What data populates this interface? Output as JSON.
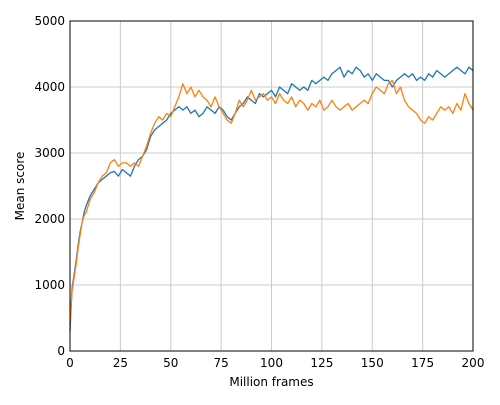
{
  "chart_data": {
    "type": "line",
    "title": "",
    "xlabel": "Million frames",
    "ylabel": "Mean score",
    "xlim": [
      0,
      200
    ],
    "ylim": [
      0,
      5000
    ],
    "xticks": [
      0,
      25,
      50,
      75,
      100,
      125,
      150,
      175,
      200
    ],
    "yticks": [
      0,
      1000,
      2000,
      3000,
      4000,
      5000
    ],
    "grid": true,
    "legend": "none",
    "series": [
      {
        "color": "#1f77b4",
        "x": [
          0,
          1,
          2,
          3,
          4,
          5,
          6,
          7,
          8,
          10,
          12,
          14,
          16,
          18,
          20,
          22,
          24,
          26,
          28,
          30,
          32,
          34,
          36,
          38,
          40,
          42,
          44,
          46,
          48,
          50,
          52,
          54,
          56,
          58,
          60,
          62,
          64,
          66,
          68,
          70,
          72,
          74,
          76,
          78,
          80,
          82,
          84,
          86,
          88,
          90,
          92,
          94,
          96,
          98,
          100,
          102,
          104,
          106,
          108,
          110,
          112,
          114,
          116,
          118,
          120,
          122,
          124,
          126,
          128,
          130,
          132,
          134,
          136,
          138,
          140,
          142,
          144,
          146,
          148,
          150,
          152,
          154,
          156,
          158,
          160,
          162,
          164,
          166,
          168,
          170,
          172,
          174,
          176,
          178,
          180,
          182,
          184,
          186,
          188,
          190,
          192,
          194,
          196,
          198,
          200
        ],
        "y": [
          300,
          950,
          1150,
          1350,
          1600,
          1800,
          1950,
          2100,
          2200,
          2350,
          2450,
          2550,
          2600,
          2650,
          2700,
          2720,
          2650,
          2750,
          2700,
          2650,
          2800,
          2900,
          2950,
          3050,
          3250,
          3350,
          3400,
          3450,
          3500,
          3600,
          3650,
          3700,
          3650,
          3700,
          3600,
          3650,
          3550,
          3600,
          3700,
          3650,
          3600,
          3700,
          3650,
          3550,
          3500,
          3600,
          3700,
          3750,
          3850,
          3800,
          3750,
          3900,
          3850,
          3900,
          3950,
          3850,
          4000,
          3950,
          3900,
          4050,
          4000,
          3950,
          4000,
          3950,
          4100,
          4050,
          4100,
          4150,
          4100,
          4200,
          4250,
          4300,
          4150,
          4250,
          4200,
          4300,
          4250,
          4150,
          4200,
          4100,
          4200,
          4150,
          4100,
          4100,
          4000,
          4100,
          4150,
          4200,
          4150,
          4200,
          4100,
          4150,
          4100,
          4200,
          4150,
          4250,
          4200,
          4150,
          4200,
          4250,
          4300,
          4250,
          4200,
          4300,
          4250
        ]
      },
      {
        "color": "#ff7f0e",
        "x": [
          0,
          1,
          2,
          3,
          4,
          5,
          6,
          7,
          8,
          10,
          12,
          14,
          16,
          18,
          20,
          22,
          24,
          26,
          28,
          30,
          32,
          34,
          36,
          38,
          40,
          42,
          44,
          46,
          48,
          50,
          52,
          54,
          56,
          58,
          60,
          62,
          64,
          66,
          68,
          70,
          72,
          74,
          76,
          78,
          80,
          82,
          84,
          86,
          88,
          90,
          92,
          94,
          96,
          98,
          100,
          102,
          104,
          106,
          108,
          110,
          112,
          114,
          116,
          118,
          120,
          122,
          124,
          126,
          128,
          130,
          132,
          134,
          136,
          138,
          140,
          142,
          144,
          146,
          148,
          150,
          152,
          154,
          156,
          158,
          160,
          162,
          164,
          166,
          168,
          170,
          172,
          174,
          176,
          178,
          180,
          182,
          184,
          186,
          188,
          190,
          192,
          194,
          196,
          198,
          200
        ],
        "y": [
          400,
          900,
          1100,
          1300,
          1550,
          1750,
          1950,
          2050,
          2100,
          2300,
          2400,
          2550,
          2650,
          2700,
          2850,
          2900,
          2800,
          2850,
          2850,
          2800,
          2850,
          2800,
          2950,
          3100,
          3300,
          3450,
          3550,
          3500,
          3600,
          3550,
          3700,
          3850,
          4050,
          3900,
          4000,
          3850,
          3950,
          3850,
          3800,
          3700,
          3850,
          3700,
          3600,
          3500,
          3450,
          3600,
          3800,
          3700,
          3800,
          3950,
          3800,
          3850,
          3900,
          3800,
          3850,
          3750,
          3900,
          3800,
          3750,
          3850,
          3700,
          3800,
          3750,
          3650,
          3750,
          3700,
          3800,
          3650,
          3700,
          3800,
          3700,
          3650,
          3700,
          3750,
          3650,
          3700,
          3750,
          3800,
          3750,
          3900,
          4000,
          3950,
          3900,
          4050,
          4100,
          3900,
          4000,
          3800,
          3700,
          3650,
          3600,
          3500,
          3450,
          3550,
          3500,
          3600,
          3700,
          3650,
          3700,
          3600,
          3750,
          3650,
          3900,
          3750,
          3650
        ]
      }
    ]
  }
}
